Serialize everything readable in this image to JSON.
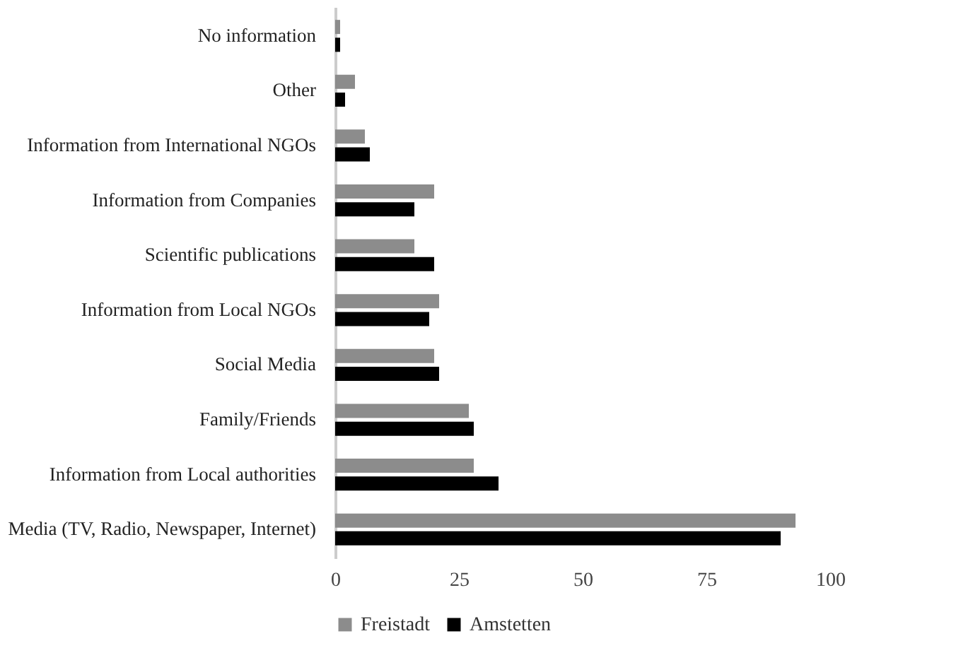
{
  "chart_data": {
    "type": "bar",
    "orientation": "horizontal",
    "categories": [
      "No information",
      "Other",
      "Information from International NGOs",
      "Information from Companies",
      "Scientific publications",
      "Information from Local NGOs",
      "Social Media",
      "Family/Friends",
      "Information from Local authorities",
      "Media (TV, Radio, Newspaper, Internet)"
    ],
    "series": [
      {
        "name": "Freistadt",
        "color": "#8c8c8c",
        "values": [
          1,
          4,
          6,
          20,
          16,
          21,
          20,
          27,
          28,
          93
        ]
      },
      {
        "name": "Amstetten",
        "color": "#000000",
        "values": [
          1,
          2,
          7,
          16,
          20,
          19,
          21,
          28,
          33,
          90
        ]
      }
    ],
    "xlim": [
      0,
      100
    ],
    "xticks": [
      0,
      25,
      50,
      75,
      100
    ],
    "grid": false,
    "legend": "bottom"
  }
}
